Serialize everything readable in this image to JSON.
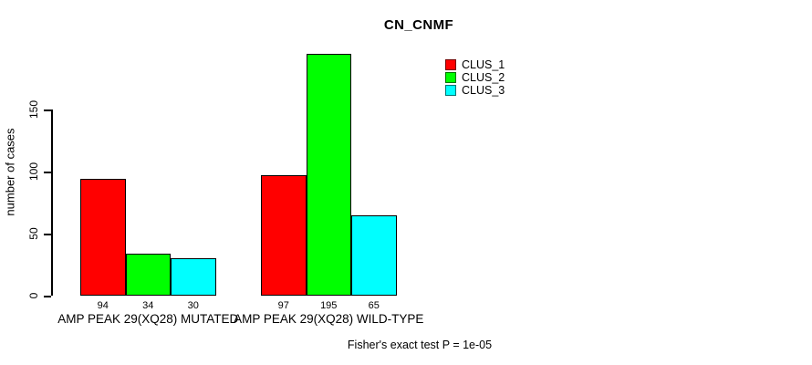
{
  "chart_data": {
    "type": "bar",
    "title": "CN_CNMF",
    "ylabel": "number of cases",
    "xlabel": "",
    "categories": [
      "AMP PEAK 29(XQ28) MUTATED",
      "AMP PEAK 29(XQ28) WILD-TYPE"
    ],
    "series": [
      {
        "name": "CLUS_1",
        "color": "#ff0000",
        "values": [
          94,
          97
        ]
      },
      {
        "name": "CLUS_2",
        "color": "#00ff00",
        "values": [
          34,
          195
        ]
      },
      {
        "name": "CLUS_3",
        "color": "#00ffff",
        "values": [
          30,
          65
        ]
      }
    ],
    "bar_value_labels": [
      [
        94,
        34,
        30
      ],
      [
        97,
        195,
        65
      ]
    ],
    "yticks": [
      0,
      50,
      100,
      150
    ],
    "ylim": [
      0,
      150
    ],
    "grid": false,
    "legend": {
      "position": "top-right",
      "entries": [
        "CLUS_1",
        "CLUS_2",
        "CLUS_3"
      ]
    },
    "annotation": "Fisher's exact test P = 1e-05"
  },
  "colors": {
    "background": "#ffffff",
    "axis": "#000000",
    "text": "#000000",
    "bar_border": "#000000",
    "clus_1": "#ff0000",
    "clus_2": "#00ff00",
    "clus_3": "#00ffff"
  }
}
